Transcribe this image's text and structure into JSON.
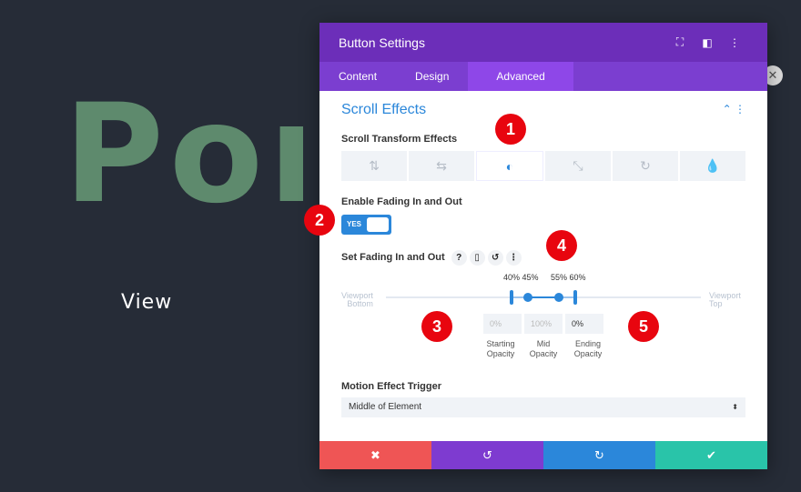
{
  "background": {
    "heading": "Port",
    "link": "View"
  },
  "panel": {
    "title": "Button Settings",
    "tabs": [
      "Content",
      "Design",
      "Advanced"
    ],
    "active_tab": "Advanced",
    "section": "Scroll Effects",
    "transform_label": "Scroll Transform Effects",
    "transform_icons": [
      "vertical-motion",
      "horizontal-motion",
      "fading",
      "scaling",
      "rotating",
      "blur"
    ],
    "selected_transform": "fading",
    "enable_label": "Enable Fading In and Out",
    "toggle": "YES",
    "fade_label": "Set Fading In and Out",
    "slider": {
      "left": "Viewport Bottom",
      "left1": "Viewport",
      "left2": "Bottom",
      "right1": "Viewport",
      "right2": "Top",
      "values": [
        40,
        45,
        55,
        60
      ],
      "labels_a": "40% 45%",
      "labels_b": "55% 60%"
    },
    "opacity": {
      "start": "0%",
      "mid": "100%",
      "end": "0%",
      "start_l1": "Starting",
      "start_l2": "Opacity",
      "mid_l1": "Mid",
      "mid_l2": "Opacity",
      "end_l1": "Ending",
      "end_l2": "Opacity"
    },
    "trigger_label": "Motion Effect Trigger",
    "trigger_value": "Middle of Element"
  },
  "badges": [
    "1",
    "2",
    "3",
    "4",
    "5"
  ],
  "colors": {
    "header": "#6c2eb9",
    "accent": "#2b87da",
    "cancel": "#ef5555",
    "undo": "#7e3bd0",
    "redo": "#2b87da",
    "save": "#29c4a9"
  }
}
